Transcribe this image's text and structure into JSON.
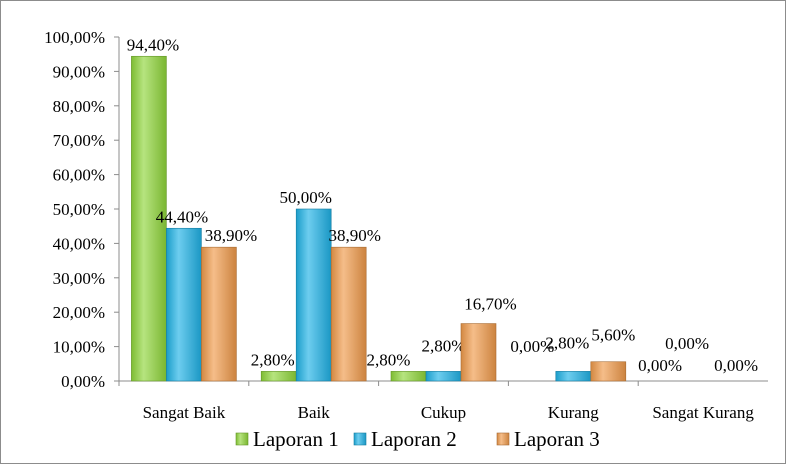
{
  "chart_data": {
    "type": "bar",
    "title": "",
    "xlabel": "",
    "ylabel": "",
    "ylim": [
      0,
      100
    ],
    "y_ticks": [
      "0,00%",
      "10,00%",
      "20,00%",
      "30,00%",
      "40,00%",
      "50,00%",
      "60,00%",
      "70,00%",
      "80,00%",
      "90,00%",
      "100,00%"
    ],
    "categories": [
      "Sangat Baik",
      "Baik",
      "Cukup",
      "Kurang",
      "Sangat Kurang"
    ],
    "series": [
      {
        "name": "Laporan 1",
        "color": "#8fd63a",
        "values": [
          94.4,
          2.8,
          2.8,
          0.0,
          0.0
        ],
        "labels": [
          "94,40%",
          "2,80%",
          "2,80%",
          "0,00%",
          "0,00%"
        ]
      },
      {
        "name": "Laporan 2",
        "color": "#1fb2e6",
        "values": [
          44.4,
          50.0,
          2.8,
          2.8,
          0.0
        ],
        "labels": [
          "44,40%",
          "50,00%",
          "2,80%",
          "2,80%",
          "0,00%"
        ]
      },
      {
        "name": "Laporan 3",
        "color": "#f09a4a",
        "values": [
          38.9,
          38.9,
          16.7,
          5.6,
          0.0
        ],
        "labels": [
          "38,90%",
          "38,90%",
          "16,70%",
          "5,60%",
          "0,00%"
        ]
      }
    ],
    "grid": false,
    "legend_position": "bottom"
  }
}
